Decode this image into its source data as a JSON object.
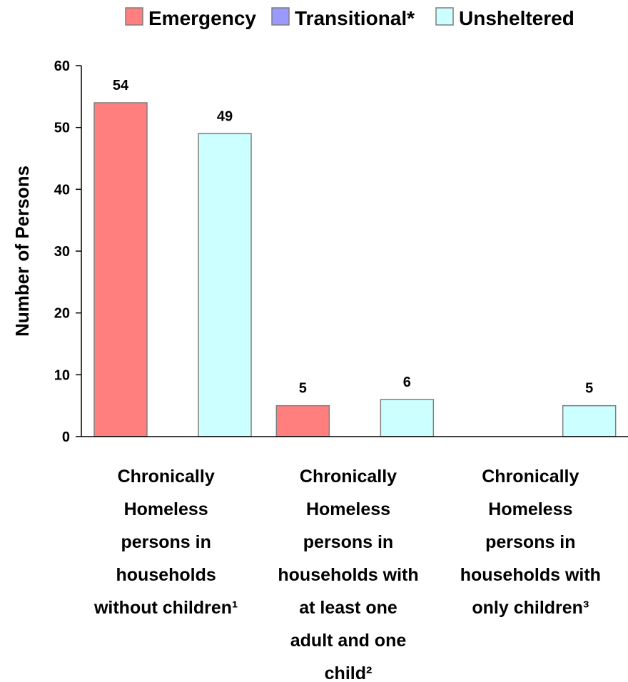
{
  "chart_data": {
    "type": "bar",
    "title": "",
    "xlabel": "",
    "ylabel": "Number of Persons",
    "ylim": [
      0,
      60
    ],
    "yticks": [
      0,
      10,
      20,
      30,
      40,
      50,
      60
    ],
    "grid": false,
    "legend_position": "top",
    "categories": [
      [
        "Chronically",
        "Homeless",
        "persons in",
        "households",
        "without children¹"
      ],
      [
        "Chronically",
        "Homeless",
        "persons in",
        "households with",
        "at least one",
        "adult and one",
        "child²"
      ],
      [
        "Chronically",
        "Homeless",
        "persons in",
        "households with",
        "only children³"
      ]
    ],
    "series": [
      {
        "name": "Emergency",
        "color": "#FF7F7F",
        "values": [
          54,
          5,
          null
        ]
      },
      {
        "name": "Transitional*",
        "color": "#9999FF",
        "values": [
          null,
          null,
          null
        ]
      },
      {
        "name": "Unsheltered",
        "color": "#CCFFFF",
        "values": [
          49,
          6,
          5
        ]
      }
    ]
  }
}
